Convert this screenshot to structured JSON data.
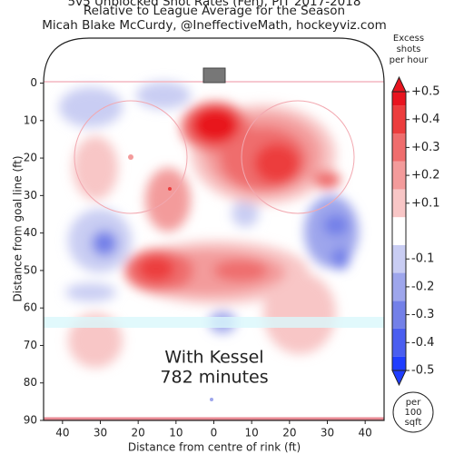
{
  "chart_data": {
    "type": "contour",
    "title": "5v5 Unblocked Shot Rates (Fen), PIT 2017-2018",
    "subtitle": "Relative to League Average for the Season",
    "credit": "Micah Blake McCurdy, @IneffectiveMath, hockeyviz.com",
    "xlabel": "Distance from centre of rink (ft)",
    "ylabel": "Distance from goal line (ft)",
    "xlim": [
      -45,
      45
    ],
    "ylim": [
      -12,
      90
    ],
    "xticks": [
      {
        "value": -40,
        "label": "40"
      },
      {
        "value": -30,
        "label": "30"
      },
      {
        "value": -20,
        "label": "20"
      },
      {
        "value": -10,
        "label": "10"
      },
      0,
      10,
      20,
      30,
      40
    ],
    "yticks": [
      0,
      10,
      20,
      30,
      40,
      50,
      60,
      70,
      80,
      90
    ],
    "annotations": [
      "With Kessel",
      "782 minutes"
    ],
    "unit_note": [
      "per",
      "100",
      "sqft"
    ],
    "colorbar_title": [
      "Excess",
      "shots",
      "per hour"
    ],
    "colorbar_lim": [
      -0.5,
      0.5
    ],
    "colorbar_ticks": [
      {
        "value": 0.5,
        "label": "+0.5"
      },
      {
        "value": 0.4,
        "label": "+0.4"
      },
      {
        "value": 0.3,
        "label": "+0.3"
      },
      {
        "value": 0.2,
        "label": "+0.2"
      },
      {
        "value": 0.1,
        "label": "+0.1"
      },
      {
        "value": -0.1,
        "label": "-0.1"
      },
      {
        "value": -0.2,
        "label": "-0.2"
      },
      {
        "value": -0.3,
        "label": "-0.3"
      },
      {
        "value": -0.4,
        "label": "-0.4"
      },
      {
        "value": -0.5,
        "label": "-0.5"
      }
    ],
    "colorbar_colors": [
      "#1f3dff",
      "#4a5ef0",
      "#7380e8",
      "#9ea6ec",
      "#c9cdf3",
      "#ffffff",
      "#f8c6c6",
      "#f39b9b",
      "#ef6d6d",
      "#ec3d3d",
      "#e8141f"
    ]
  }
}
